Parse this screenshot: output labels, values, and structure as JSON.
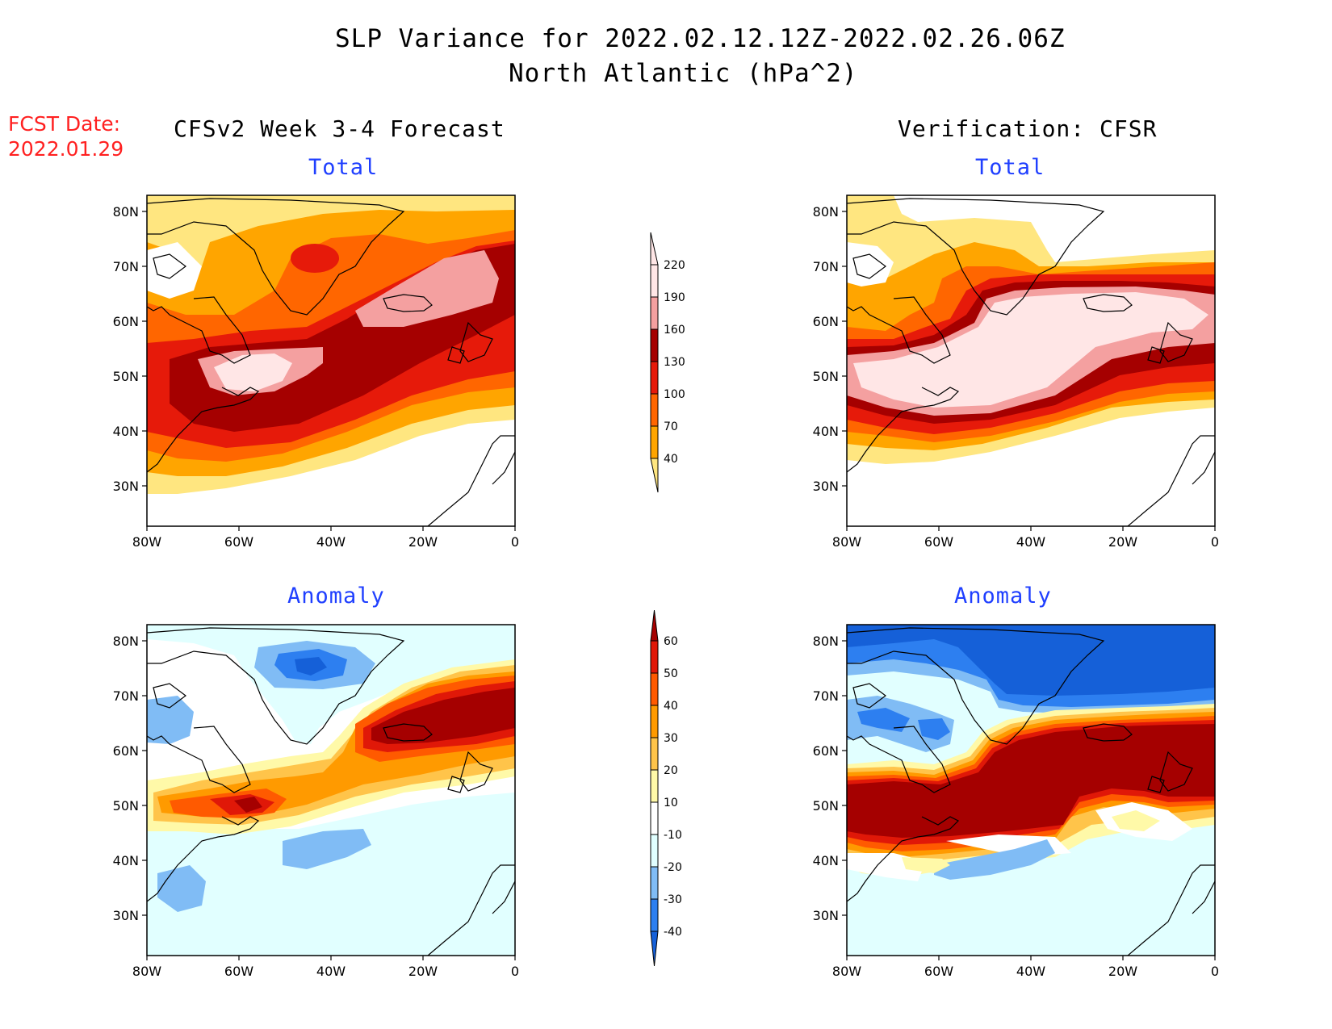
{
  "title": {
    "line1": "SLP Variance for 2022.02.12.12Z-2022.02.26.06Z",
    "line2": "North Atlantic (hPa^2)"
  },
  "fcst": {
    "label": "FCST Date:",
    "date": "2022.01.29"
  },
  "columns": {
    "left": "CFSv2 Week 3-4 Forecast",
    "right": "Verification: CFSR"
  },
  "panels": {
    "top_left": "Total",
    "top_right": "Total",
    "bottom_left": "Anomaly",
    "bottom_right": "Anomaly"
  },
  "axes": {
    "lon_labels": [
      "80W",
      "60W",
      "40W",
      "20W",
      "0"
    ],
    "lat_labels": [
      "80N",
      "70N",
      "60N",
      "50N",
      "40N",
      "30N"
    ],
    "lon_range": [
      -80,
      0
    ],
    "lat_range": [
      25,
      85
    ]
  },
  "total_colorbar": {
    "levels": [
      "40",
      "70",
      "100",
      "130",
      "160",
      "190",
      "220"
    ],
    "colors": [
      "#ffe680",
      "#ffa500",
      "#ff6600",
      "#e61a0a",
      "#a50000",
      "#f4a0a0",
      "#ffe6e6"
    ]
  },
  "anomaly_colorbar": {
    "levels": [
      "-40",
      "-30",
      "-20",
      "-10",
      "10",
      "20",
      "30",
      "40",
      "50",
      "60"
    ],
    "colors": [
      "#1560d8",
      "#2d7ff0",
      "#80bcf5",
      "#e1ffff",
      "#ffffff",
      "#fff9a8",
      "#ffc44a",
      "#ff9a00",
      "#ff5a00",
      "#e01808",
      "#a50000"
    ]
  },
  "colors": {
    "title_blue": "#1f3fff",
    "fcst_red": "#ff2020"
  }
}
